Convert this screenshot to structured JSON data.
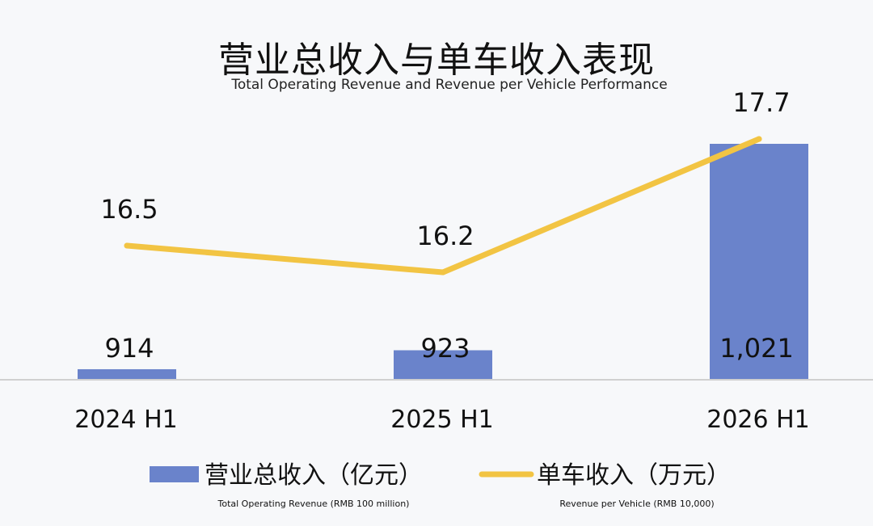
{
  "chart_data": {
    "type": "bar",
    "title": "营业总收入与单车收入表现",
    "subtitle": "Total Operating Revenue and Revenue per Vehicle Performance",
    "categories": [
      "2024 H1",
      "2025 H1",
      "2026 H1"
    ],
    "series": [
      {
        "name": "营业总收入（亿元）",
        "name_en": "Total Operating Revenue (RMB 100 million)",
        "type": "bar",
        "color": "#6a83cb",
        "values": [
          914,
          923,
          1021
        ],
        "labels": [
          "914",
          "923",
          "1,021"
        ]
      },
      {
        "name": "单车收入（万元）",
        "name_en": "Revenue per Vehicle (RMB 10,000)",
        "type": "line",
        "color": "#f2c443",
        "values": [
          16.5,
          16.2,
          17.7
        ],
        "labels": [
          "16.5",
          "16.2",
          "17.7"
        ]
      }
    ],
    "grid": false,
    "legend_position": "bottom"
  }
}
